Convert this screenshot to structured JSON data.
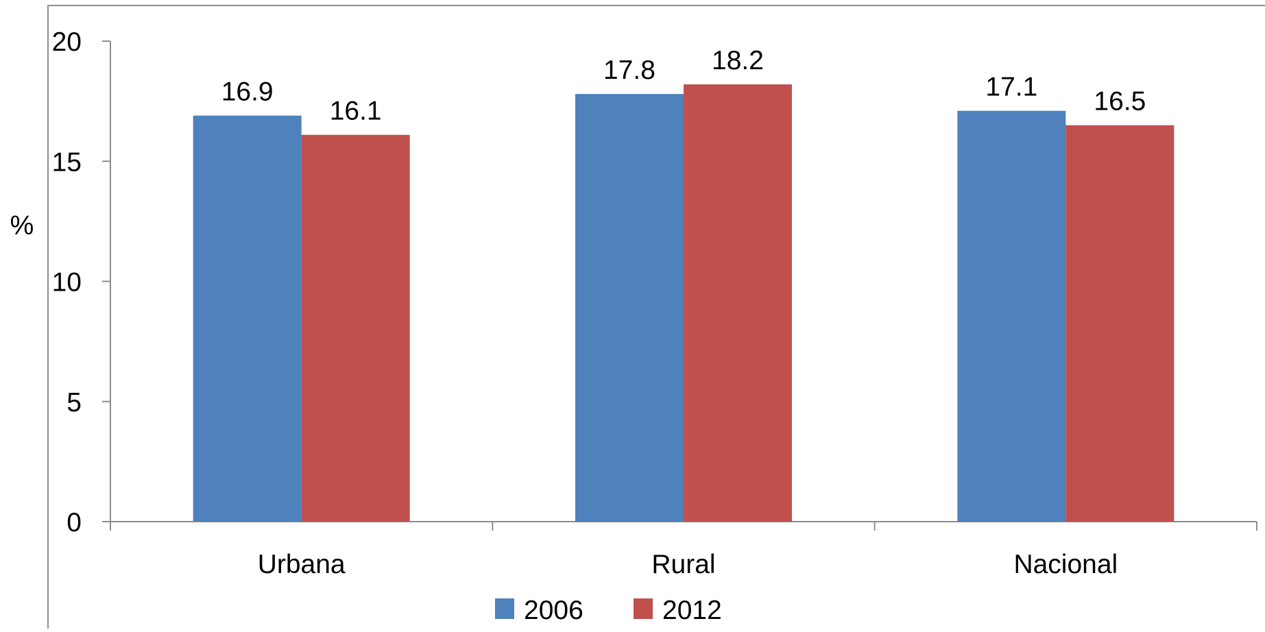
{
  "chart_data": {
    "type": "bar",
    "categories": [
      "Urbana",
      "Rural",
      "Nacional"
    ],
    "series": [
      {
        "name": "2006",
        "values": [
          16.9,
          17.8,
          17.1
        ],
        "color": "#4f81bd"
      },
      {
        "name": "2012",
        "values": [
          16.1,
          18.2,
          16.5
        ],
        "color": "#c0504d"
      }
    ],
    "data_labels": [
      [
        "16.9",
        "17.8",
        "17.1"
      ],
      [
        "16.1",
        "18.2",
        "16.5"
      ]
    ],
    "ylabel": "%",
    "ylim": [
      0,
      20
    ],
    "yticks": [
      0,
      5,
      10,
      15,
      20
    ],
    "ytick_labels": [
      "0",
      "5",
      "10",
      "15",
      "20"
    ],
    "grid": false,
    "legend_position": "bottom-center"
  }
}
